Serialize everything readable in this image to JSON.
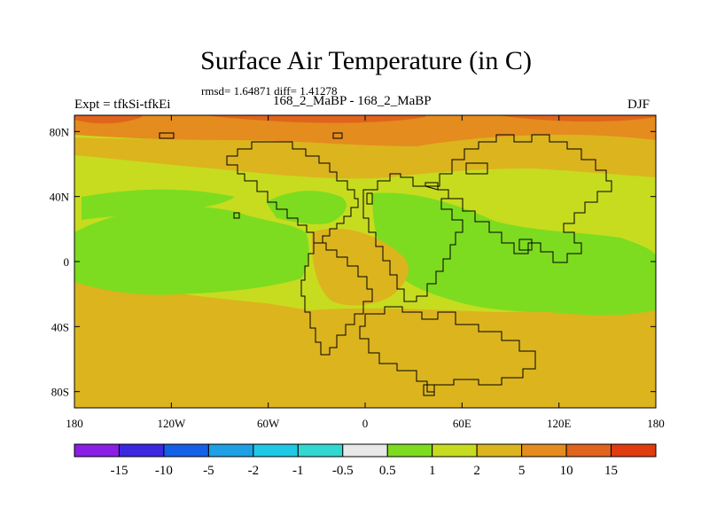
{
  "header": {
    "title": "Surface Air Temperature (in C)",
    "stats": "rmsd= 1.64871 diff= 1.41278",
    "expt": "Expt = tfkSi-tfkEi",
    "case": "168_2_MaBP - 168_2_MaBP",
    "season": "DJF"
  },
  "axes": {
    "lat_ticks": [
      {
        "label": "80N",
        "value": 80
      },
      {
        "label": "40N",
        "value": 40
      },
      {
        "label": "0",
        "value": 0
      },
      {
        "label": "40S",
        "value": -40
      },
      {
        "label": "80S",
        "value": -80
      }
    ],
    "lon_ticks": [
      {
        "label": "180",
        "value": -180
      },
      {
        "label": "120W",
        "value": -120
      },
      {
        "label": "60W",
        "value": -60
      },
      {
        "label": "0",
        "value": 0
      },
      {
        "label": "60E",
        "value": 60
      },
      {
        "label": "120E",
        "value": 120
      },
      {
        "label": "180",
        "value": 180
      }
    ],
    "lon_range": [
      -180,
      180
    ],
    "lat_range": [
      -90,
      90
    ]
  },
  "colorbar": {
    "colors": [
      "#8a1ee6",
      "#3c28e0",
      "#1560e8",
      "#1ea0e6",
      "#1ec8e6",
      "#30d8d0",
      "#e8e8e8",
      "#7ddc1f",
      "#c7dc1f",
      "#dcb41e",
      "#e48c1e",
      "#e0641c",
      "#e03c10"
    ],
    "labels": [
      "-15",
      "-10",
      "-5",
      "-2",
      "-1",
      "-0.5",
      "0.5",
      "1",
      "2",
      "5",
      "10",
      "15"
    ]
  }
}
